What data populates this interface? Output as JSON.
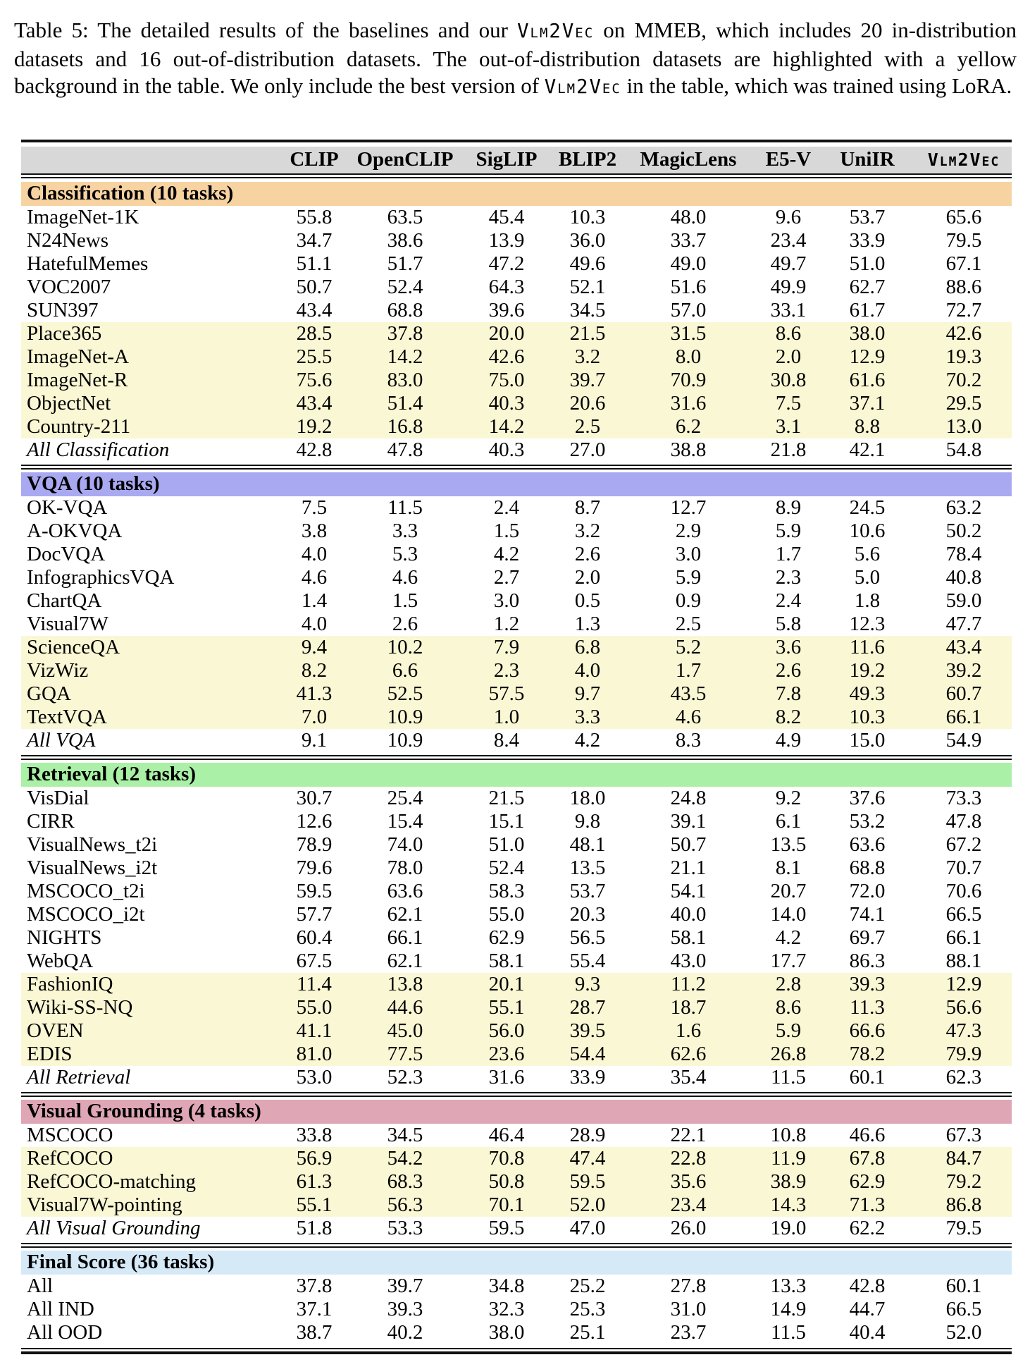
{
  "caption": {
    "segments": [
      {
        "text": "Table 5: The detailed results of the baselines and our ",
        "mono": false
      },
      {
        "text": "Vlm2Vec",
        "mono": true
      },
      {
        "text": " on MMEB, which includes 20 in-distribution datasets and 16 out-of-distribution datasets. The out-of-distribution datasets are highlighted with a yellow background in the table. We only include the best version of ",
        "mono": false
      },
      {
        "text": "Vlm2Vec",
        "mono": true
      },
      {
        "text": " in the table, which was trained using LoRA.",
        "mono": false
      }
    ]
  },
  "colors": {
    "header_bg": "#d8d8d8",
    "ood_row_bg": "#faf7d4",
    "rule": "#111111",
    "classification_bg": "#f7d3a2",
    "vqa_bg": "#a9a9f1",
    "retrieval_bg": "#aaf0a6",
    "grounding_bg": "#dfa6b6",
    "final_bg": "#d5e9f7"
  },
  "table": {
    "columns": [
      {
        "label": "CLIP",
        "mono": false
      },
      {
        "label": "OpenCLIP",
        "mono": false
      },
      {
        "label": "SigLIP",
        "mono": false
      },
      {
        "label": "BLIP2",
        "mono": false
      },
      {
        "label": "MagicLens",
        "mono": false
      },
      {
        "label": "E5-V",
        "mono": false
      },
      {
        "label": "UniIR",
        "mono": false
      },
      {
        "label": "Vlm2Vec",
        "mono": true
      }
    ],
    "sections": [
      {
        "title": "Classification (10 tasks)",
        "color": "#f7d3a2",
        "rows": [
          {
            "name": "ImageNet-1K",
            "ood": false,
            "summary": false,
            "values": [
              "55.8",
              "63.5",
              "45.4",
              "10.3",
              "48.0",
              "9.6",
              "53.7",
              "65.6"
            ]
          },
          {
            "name": "N24News",
            "ood": false,
            "summary": false,
            "values": [
              "34.7",
              "38.6",
              "13.9",
              "36.0",
              "33.7",
              "23.4",
              "33.9",
              "79.5"
            ]
          },
          {
            "name": "HatefulMemes",
            "ood": false,
            "summary": false,
            "values": [
              "51.1",
              "51.7",
              "47.2",
              "49.6",
              "49.0",
              "49.7",
              "51.0",
              "67.1"
            ]
          },
          {
            "name": "VOC2007",
            "ood": false,
            "summary": false,
            "values": [
              "50.7",
              "52.4",
              "64.3",
              "52.1",
              "51.6",
              "49.9",
              "62.7",
              "88.6"
            ]
          },
          {
            "name": "SUN397",
            "ood": false,
            "summary": false,
            "values": [
              "43.4",
              "68.8",
              "39.6",
              "34.5",
              "57.0",
              "33.1",
              "61.7",
              "72.7"
            ]
          },
          {
            "name": "Place365",
            "ood": true,
            "summary": false,
            "values": [
              "28.5",
              "37.8",
              "20.0",
              "21.5",
              "31.5",
              "8.6",
              "38.0",
              "42.6"
            ]
          },
          {
            "name": "ImageNet-A",
            "ood": true,
            "summary": false,
            "values": [
              "25.5",
              "14.2",
              "42.6",
              "3.2",
              "8.0",
              "2.0",
              "12.9",
              "19.3"
            ]
          },
          {
            "name": "ImageNet-R",
            "ood": true,
            "summary": false,
            "values": [
              "75.6",
              "83.0",
              "75.0",
              "39.7",
              "70.9",
              "30.8",
              "61.6",
              "70.2"
            ]
          },
          {
            "name": "ObjectNet",
            "ood": true,
            "summary": false,
            "values": [
              "43.4",
              "51.4",
              "40.3",
              "20.6",
              "31.6",
              "7.5",
              "37.1",
              "29.5"
            ]
          },
          {
            "name": "Country-211",
            "ood": true,
            "summary": false,
            "values": [
              "19.2",
              "16.8",
              "14.2",
              "2.5",
              "6.2",
              "3.1",
              "8.8",
              "13.0"
            ]
          },
          {
            "name": "All Classification",
            "ood": false,
            "summary": true,
            "values": [
              "42.8",
              "47.8",
              "40.3",
              "27.0",
              "38.8",
              "21.8",
              "42.1",
              "54.8"
            ]
          }
        ]
      },
      {
        "title": "VQA (10 tasks)",
        "color": "#a9a9f1",
        "rows": [
          {
            "name": "OK-VQA",
            "ood": false,
            "summary": false,
            "values": [
              "7.5",
              "11.5",
              "2.4",
              "8.7",
              "12.7",
              "8.9",
              "24.5",
              "63.2"
            ]
          },
          {
            "name": "A-OKVQA",
            "ood": false,
            "summary": false,
            "values": [
              "3.8",
              "3.3",
              "1.5",
              "3.2",
              "2.9",
              "5.9",
              "10.6",
              "50.2"
            ]
          },
          {
            "name": "DocVQA",
            "ood": false,
            "summary": false,
            "values": [
              "4.0",
              "5.3",
              "4.2",
              "2.6",
              "3.0",
              "1.7",
              "5.6",
              "78.4"
            ]
          },
          {
            "name": "InfographicsVQA",
            "ood": false,
            "summary": false,
            "values": [
              "4.6",
              "4.6",
              "2.7",
              "2.0",
              "5.9",
              "2.3",
              "5.0",
              "40.8"
            ]
          },
          {
            "name": "ChartQA",
            "ood": false,
            "summary": false,
            "values": [
              "1.4",
              "1.5",
              "3.0",
              "0.5",
              "0.9",
              "2.4",
              "1.8",
              "59.0"
            ]
          },
          {
            "name": "Visual7W",
            "ood": false,
            "summary": false,
            "values": [
              "4.0",
              "2.6",
              "1.2",
              "1.3",
              "2.5",
              "5.8",
              "12.3",
              "47.7"
            ]
          },
          {
            "name": "ScienceQA",
            "ood": true,
            "summary": false,
            "values": [
              "9.4",
              "10.2",
              "7.9",
              "6.8",
              "5.2",
              "3.6",
              "11.6",
              "43.4"
            ]
          },
          {
            "name": "VizWiz",
            "ood": true,
            "summary": false,
            "values": [
              "8.2",
              "6.6",
              "2.3",
              "4.0",
              "1.7",
              "2.6",
              "19.2",
              "39.2"
            ]
          },
          {
            "name": "GQA",
            "ood": true,
            "summary": false,
            "values": [
              "41.3",
              "52.5",
              "57.5",
              "9.7",
              "43.5",
              "7.8",
              "49.3",
              "60.7"
            ]
          },
          {
            "name": "TextVQA",
            "ood": true,
            "summary": false,
            "values": [
              "7.0",
              "10.9",
              "1.0",
              "3.3",
              "4.6",
              "8.2",
              "10.3",
              "66.1"
            ]
          },
          {
            "name": "All VQA",
            "ood": false,
            "summary": true,
            "values": [
              "9.1",
              "10.9",
              "8.4",
              "4.2",
              "8.3",
              "4.9",
              "15.0",
              "54.9"
            ]
          }
        ]
      },
      {
        "title": "Retrieval (12 tasks)",
        "color": "#aaf0a6",
        "rows": [
          {
            "name": "VisDial",
            "ood": false,
            "summary": false,
            "values": [
              "30.7",
              "25.4",
              "21.5",
              "18.0",
              "24.8",
              "9.2",
              "37.6",
              "73.3"
            ]
          },
          {
            "name": "CIRR",
            "ood": false,
            "summary": false,
            "values": [
              "12.6",
              "15.4",
              "15.1",
              "9.8",
              "39.1",
              "6.1",
              "53.2",
              "47.8"
            ]
          },
          {
            "name": "VisualNews_t2i",
            "ood": false,
            "summary": false,
            "values": [
              "78.9",
              "74.0",
              "51.0",
              "48.1",
              "50.7",
              "13.5",
              "63.6",
              "67.2"
            ]
          },
          {
            "name": "VisualNews_i2t",
            "ood": false,
            "summary": false,
            "values": [
              "79.6",
              "78.0",
              "52.4",
              "13.5",
              "21.1",
              "8.1",
              "68.8",
              "70.7"
            ]
          },
          {
            "name": "MSCOCO_t2i",
            "ood": false,
            "summary": false,
            "values": [
              "59.5",
              "63.6",
              "58.3",
              "53.7",
              "54.1",
              "20.7",
              "72.0",
              "70.6"
            ]
          },
          {
            "name": "MSCOCO_i2t",
            "ood": false,
            "summary": false,
            "values": [
              "57.7",
              "62.1",
              "55.0",
              "20.3",
              "40.0",
              "14.0",
              "74.1",
              "66.5"
            ]
          },
          {
            "name": "NIGHTS",
            "ood": false,
            "summary": false,
            "values": [
              "60.4",
              "66.1",
              "62.9",
              "56.5",
              "58.1",
              "4.2",
              "69.7",
              "66.1"
            ]
          },
          {
            "name": "WebQA",
            "ood": false,
            "summary": false,
            "values": [
              "67.5",
              "62.1",
              "58.1",
              "55.4",
              "43.0",
              "17.7",
              "86.3",
              "88.1"
            ]
          },
          {
            "name": "FashionIQ",
            "ood": true,
            "summary": false,
            "values": [
              "11.4",
              "13.8",
              "20.1",
              "9.3",
              "11.2",
              "2.8",
              "39.3",
              "12.9"
            ]
          },
          {
            "name": "Wiki-SS-NQ",
            "ood": true,
            "summary": false,
            "values": [
              "55.0",
              "44.6",
              "55.1",
              "28.7",
              "18.7",
              "8.6",
              "11.3",
              "56.6"
            ]
          },
          {
            "name": "OVEN",
            "ood": true,
            "summary": false,
            "values": [
              "41.1",
              "45.0",
              "56.0",
              "39.5",
              "1.6",
              "5.9",
              "66.6",
              "47.3"
            ]
          },
          {
            "name": "EDIS",
            "ood": true,
            "summary": false,
            "values": [
              "81.0",
              "77.5",
              "23.6",
              "54.4",
              "62.6",
              "26.8",
              "78.2",
              "79.9"
            ]
          },
          {
            "name": "All Retrieval",
            "ood": false,
            "summary": true,
            "values": [
              "53.0",
              "52.3",
              "31.6",
              "33.9",
              "35.4",
              "11.5",
              "60.1",
              "62.3"
            ]
          }
        ]
      },
      {
        "title": "Visual Grounding (4 tasks)",
        "color": "#dfa6b6",
        "rows": [
          {
            "name": "MSCOCO",
            "ood": false,
            "summary": false,
            "values": [
              "33.8",
              "34.5",
              "46.4",
              "28.9",
              "22.1",
              "10.8",
              "46.6",
              "67.3"
            ]
          },
          {
            "name": "RefCOCO",
            "ood": true,
            "summary": false,
            "values": [
              "56.9",
              "54.2",
              "70.8",
              "47.4",
              "22.8",
              "11.9",
              "67.8",
              "84.7"
            ]
          },
          {
            "name": "RefCOCO-matching",
            "ood": true,
            "summary": false,
            "values": [
              "61.3",
              "68.3",
              "50.8",
              "59.5",
              "35.6",
              "38.9",
              "62.9",
              "79.2"
            ]
          },
          {
            "name": "Visual7W-pointing",
            "ood": true,
            "summary": false,
            "values": [
              "55.1",
              "56.3",
              "70.1",
              "52.0",
              "23.4",
              "14.3",
              "71.3",
              "86.8"
            ]
          },
          {
            "name": "All Visual Grounding",
            "ood": false,
            "summary": true,
            "values": [
              "51.8",
              "53.3",
              "59.5",
              "47.0",
              "26.0",
              "19.0",
              "62.2",
              "79.5"
            ]
          }
        ]
      },
      {
        "title": "Final Score (36 tasks)",
        "color": "#d5e9f7",
        "rows": [
          {
            "name": "All",
            "ood": false,
            "summary": false,
            "values": [
              "37.8",
              "39.7",
              "34.8",
              "25.2",
              "27.8",
              "13.3",
              "42.8",
              "60.1"
            ]
          },
          {
            "name": "All IND",
            "ood": false,
            "summary": false,
            "values": [
              "37.1",
              "39.3",
              "32.3",
              "25.3",
              "31.0",
              "14.9",
              "44.7",
              "66.5"
            ]
          },
          {
            "name": "All OOD",
            "ood": false,
            "summary": false,
            "values": [
              "38.7",
              "40.2",
              "38.0",
              "25.1",
              "23.7",
              "11.5",
              "40.4",
              "52.0"
            ]
          }
        ]
      }
    ]
  }
}
